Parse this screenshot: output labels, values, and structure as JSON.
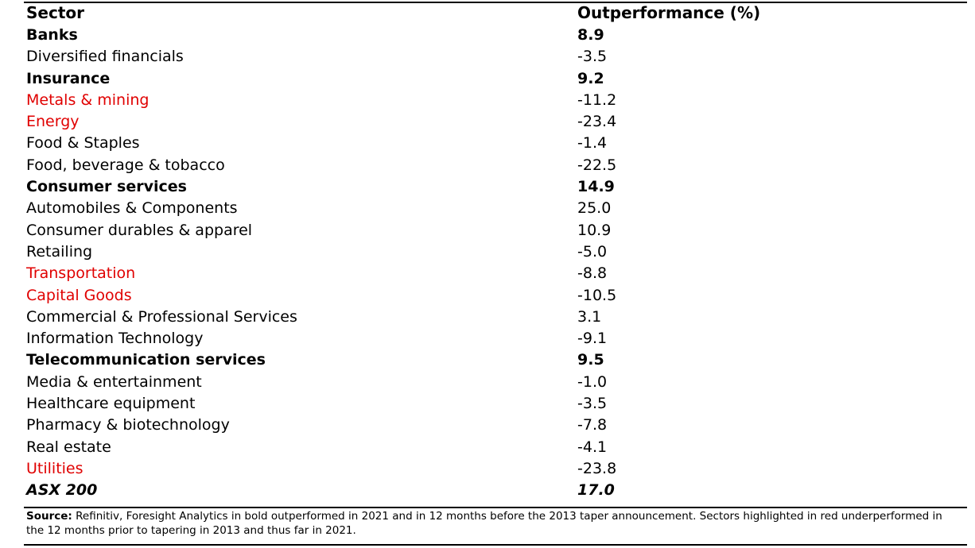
{
  "table": {
    "header": {
      "sector": "Sector",
      "value": "Outperformance (%)"
    },
    "rows": [
      {
        "sector": "Banks",
        "value": "8.9",
        "style": "bold"
      },
      {
        "sector": "Diversified financials",
        "value": "-3.5",
        "style": "normal"
      },
      {
        "sector": "Insurance",
        "value": "9.2",
        "style": "bold"
      },
      {
        "sector": "Metals & mining",
        "value": "-11.2",
        "style": "red"
      },
      {
        "sector": "Energy",
        "value": "-23.4",
        "style": "red"
      },
      {
        "sector": "Food & Staples",
        "value": "-1.4",
        "style": "normal"
      },
      {
        "sector": "Food, beverage & tobacco",
        "value": "-22.5",
        "style": "normal"
      },
      {
        "sector": "Consumer services",
        "value": "14.9",
        "style": "bold"
      },
      {
        "sector": "Automobiles & Components",
        "value": "25.0",
        "style": "normal"
      },
      {
        "sector": "Consumer durables & apparel",
        "value": "10.9",
        "style": "normal"
      },
      {
        "sector": "Retailing",
        "value": "-5.0",
        "style": "normal"
      },
      {
        "sector": "Transportation",
        "value": "-8.8",
        "style": "red"
      },
      {
        "sector": "Capital Goods",
        "value": "-10.5",
        "style": "red"
      },
      {
        "sector": "Commercial & Professional Services",
        "value": "3.1",
        "style": "normal"
      },
      {
        "sector": "Information Technology",
        "value": "-9.1",
        "style": "normal"
      },
      {
        "sector": "Telecommunication services",
        "value": "9.5",
        "style": "bold"
      },
      {
        "sector": "Media & entertainment",
        "value": "-1.0",
        "style": "normal"
      },
      {
        "sector": "Healthcare equipment",
        "value": "-3.5",
        "style": "normal"
      },
      {
        "sector": "Pharmacy & biotechnology",
        "value": "-7.8",
        "style": "normal"
      },
      {
        "sector": "Real estate",
        "value": "-4.1",
        "style": "normal"
      },
      {
        "sector": "Utilities",
        "value": "-23.8",
        "style": "red"
      },
      {
        "sector": "ASX 200",
        "value": "17.0",
        "style": "bold-italic"
      }
    ]
  },
  "footnote": {
    "label": "Source:",
    "text": " Refinitiv, Foresight Analytics in bold outperformed in 2021 and in 12 months before the 2013 taper announcement.  Sectors highlighted in red underperformed in the 12 months prior to tapering in 2013 and thus far in 2021."
  },
  "colors": {
    "highlight_red": "#e00000",
    "text": "#000000",
    "rule": "#000000"
  }
}
